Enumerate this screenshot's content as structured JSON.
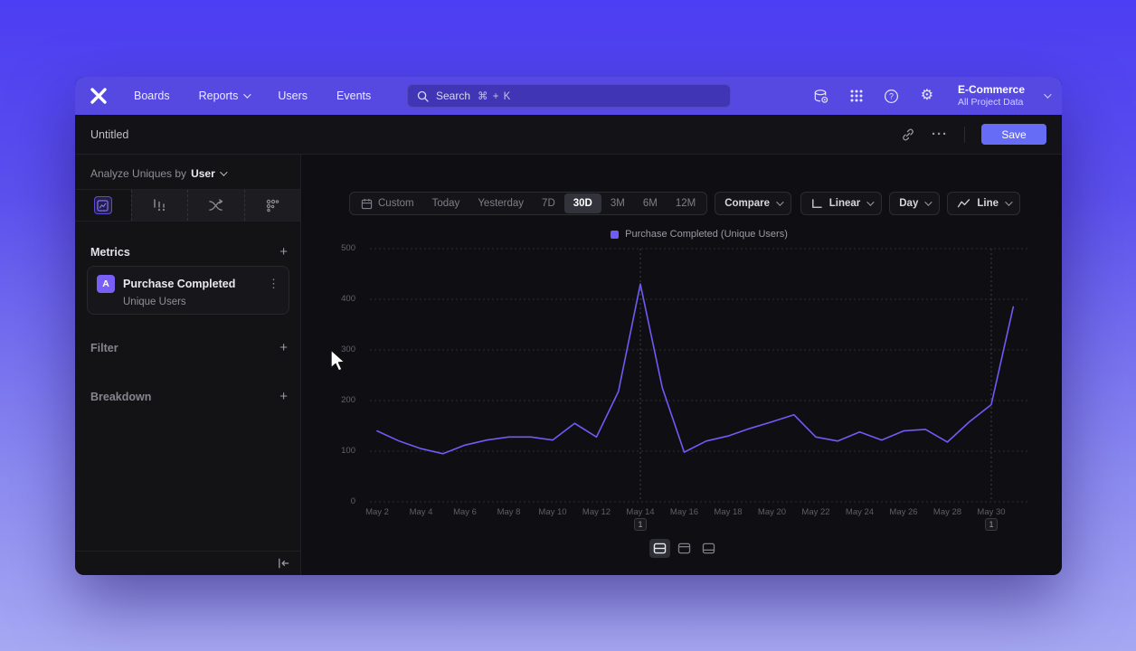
{
  "nav": {
    "items": [
      "Boards",
      "Reports",
      "Users",
      "Events"
    ],
    "search": {
      "label": "Search",
      "shortcut": "⌘ + K"
    },
    "project": {
      "name": "E-Commerce",
      "scope": "All Project Data"
    }
  },
  "header": {
    "title": "Untitled",
    "more": "···",
    "save": "Save"
  },
  "sidebar": {
    "analyze_prefix": "Analyze Uniques by",
    "analyze_value": "User",
    "metrics_title": "Metrics",
    "filter_title": "Filter",
    "breakdown_title": "Breakdown",
    "add": "+",
    "metric": {
      "badge": "A",
      "name": "Purchase Completed",
      "sub": "Unique Users",
      "kebab": "⋮"
    }
  },
  "controls": {
    "ranges": [
      "Custom",
      "Today",
      "Yesterday",
      "7D",
      "30D",
      "3M",
      "6M",
      "12M"
    ],
    "active_range": "30D",
    "compare": "Compare",
    "scale": "Linear",
    "granularity": "Day",
    "chart_type": "Line"
  },
  "icons": {
    "gear_glyph": "⚙",
    "help_glyph": "?"
  },
  "chart_data": {
    "type": "line",
    "legend": "Purchase Completed (Unique Users)",
    "x": [
      "May 2",
      "May 3",
      "May 4",
      "May 5",
      "May 6",
      "May 7",
      "May 8",
      "May 9",
      "May 10",
      "May 11",
      "May 12",
      "May 13",
      "May 14",
      "May 15",
      "May 16",
      "May 17",
      "May 18",
      "May 19",
      "May 20",
      "May 21",
      "May 22",
      "May 23",
      "May 24",
      "May 25",
      "May 26",
      "May 27",
      "May 28",
      "May 29",
      "May 30",
      "May 31"
    ],
    "series": [
      {
        "name": "Purchase Completed (Unique Users)",
        "values": [
          140,
          120,
          105,
          95,
          112,
          122,
          128,
          128,
          122,
          155,
          128,
          218,
          430,
          225,
          98,
          120,
          130,
          145,
          158,
          172,
          128,
          120,
          138,
          122,
          140,
          143,
          118,
          158,
          192,
          385
        ]
      }
    ],
    "ylim": [
      0,
      500
    ],
    "yticks": [
      0,
      100,
      200,
      300,
      400,
      500
    ],
    "xtick_labels": [
      "May 2",
      "May 4",
      "May 6",
      "May 8",
      "May 10",
      "May 12",
      "May 14",
      "May 16",
      "May 18",
      "May 20",
      "May 22",
      "May 24",
      "May 26",
      "May 28",
      "May 30"
    ],
    "grid": "dashed-horizontal",
    "annotations": [
      {
        "label": "1",
        "index": 12
      },
      {
        "label": "1",
        "index": 28
      }
    ],
    "line_color": "#6f5bf5"
  }
}
